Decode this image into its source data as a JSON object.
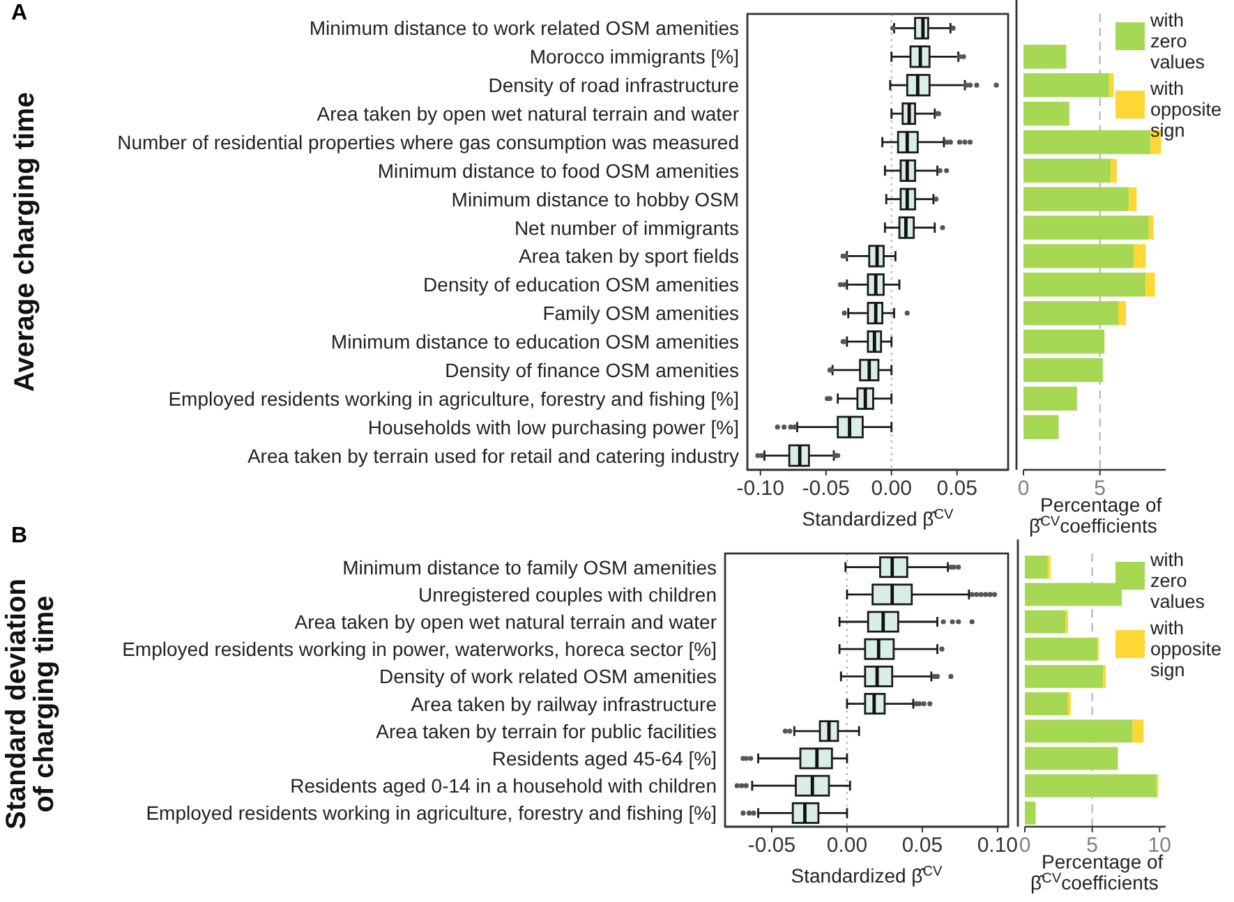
{
  "chart_data": [
    {
      "type": "box",
      "title": "A",
      "ylabel": "Average charging time",
      "xlabel": "Standardized β̂$^{CV}$",
      "orientation": "horizontal",
      "categories": [
        "Minimum distance to work related OSM amenities",
        "Morocco immigrants [%]",
        "Density of road infrastructure",
        "Area taken by open wet natural terrain and water",
        "Number of residential properties where gas consumption was measured",
        "Minimum distance to food OSM amenities",
        "Minimum distance to hobby OSM",
        "Net number of immigrants",
        "Area taken by sport fields",
        "Density of education OSM amenities",
        "Family OSM amenities",
        "Minimum distance to education OSM amenities",
        "Density of finance OSM amenities",
        "Employed residents working in agriculture, forestry and fishing [%]",
        "Households with low purchasing power [%]",
        "Area taken by terrain used for retail and catering industry"
      ],
      "xlim": [
        -0.11,
        0.089
      ],
      "xticks": [
        {
          "value": -0.1,
          "label": "-0.10"
        },
        {
          "value": -0.05,
          "label": "-0.05"
        },
        {
          "value": 0,
          "label": "0.00"
        },
        {
          "value": 0.05,
          "label": "0.05"
        }
      ],
      "ref_lines": [
        {
          "axis": "x",
          "value": 0,
          "color": "#bbbbbb",
          "line_style": "dotted"
        }
      ],
      "series": [
        {
          "color": "#d8eee6",
          "boxes": [
            {
              "low": 0.002,
              "q1": 0.018,
              "median": 0.024,
              "q3": 0.028,
              "high": 0.045,
              "outliers": [
                0.001,
                0.047
              ]
            },
            {
              "low": 0,
              "q1": 0.0145,
              "median": 0.022,
              "q3": 0.029,
              "high": 0.051,
              "outliers": [
                0.052,
                0.055
              ]
            },
            {
              "low": -0.001,
              "q1": 0.012,
              "median": 0.02,
              "q3": 0.029,
              "high": 0.056,
              "outliers": [
                0.057,
                0.06,
                0.065,
                0.08
              ]
            },
            {
              "low": 0,
              "q1": 0.0085,
              "median": 0.0135,
              "q3": 0.018,
              "high": 0.033,
              "outliers": [
                0.035,
                0.036
              ]
            },
            {
              "low": -0.007,
              "q1": 0.005,
              "median": 0.012,
              "q3": 0.02,
              "high": 0.04,
              "outliers": [
                0.042,
                0.045,
                0.052,
                0.056,
                0.06
              ]
            },
            {
              "low": -0.005,
              "q1": 0.007,
              "median": 0.012,
              "q3": 0.018,
              "high": 0.035,
              "outliers": [
                0.037,
                0.042
              ]
            },
            {
              "low": -0.004,
              "q1": 0.007,
              "median": 0.012,
              "q3": 0.018,
              "high": 0.032,
              "outliers": [
                0.034
              ]
            },
            {
              "low": -0.005,
              "q1": 0.006,
              "median": 0.011,
              "q3": 0.017,
              "high": 0.033,
              "outliers": [
                0.039
              ]
            },
            {
              "low": -0.034,
              "q1": -0.017,
              "median": -0.011,
              "q3": -0.006,
              "high": 0.003,
              "outliers": [
                -0.037,
                -0.035
              ]
            },
            {
              "low": -0.034,
              "q1": -0.018,
              "median": -0.012,
              "q3": -0.006,
              "high": 0.006,
              "outliers": [
                -0.039,
                -0.036
              ]
            },
            {
              "low": -0.033,
              "q1": -0.018,
              "median": -0.012,
              "q3": -0.007,
              "high": 0.002,
              "outliers": [
                -0.036,
                0.012
              ]
            },
            {
              "low": -0.034,
              "q1": -0.018,
              "median": -0.013,
              "q3": -0.008,
              "high": 0,
              "outliers": [
                -0.037,
                -0.036
              ]
            },
            {
              "low": -0.045,
              "q1": -0.024,
              "median": -0.017,
              "q3": -0.01,
              "high": 0,
              "outliers": [
                -0.047,
                -0.046
              ]
            },
            {
              "low": -0.041,
              "q1": -0.026,
              "median": -0.02,
              "q3": -0.014,
              "high": 0,
              "outliers": [
                -0.049,
                -0.047
              ]
            },
            {
              "low": -0.072,
              "q1": -0.041,
              "median": -0.032,
              "q3": -0.022,
              "high": 0,
              "outliers": [
                -0.087,
                -0.082,
                -0.077,
                -0.074
              ]
            },
            {
              "low": -0.097,
              "q1": -0.078,
              "median": -0.07,
              "q3": -0.063,
              "high": -0.044,
              "outliers": [
                -0.102,
                -0.099,
                -0.043,
                -0.041
              ]
            }
          ]
        }
      ]
    },
    {
      "type": "bar",
      "orientation": "horizontal",
      "stacked": true,
      "tick_labels": "x",
      "legend": "top right",
      "xlabel": "Percentage of β̂$^{CV}$coefficients",
      "categories": [
        null,
        null,
        null,
        null,
        null,
        null,
        null,
        null,
        null,
        null,
        null,
        null,
        null,
        null,
        null,
        null
      ],
      "xlim": [
        0,
        9.3
      ],
      "xticks": [
        0,
        5
      ],
      "ref_lines": [
        {
          "axis": "x",
          "value": 5,
          "color": "#bbbbbb",
          "line_style": "dashed"
        }
      ],
      "series": [
        {
          "name": "with zero values",
          "color": "#a6d854",
          "values": [
            null,
            2.8,
            5.6,
            3.0,
            8.3,
            5.7,
            6.9,
            8.2,
            7.2,
            8.0,
            6.2,
            5.3,
            5.2,
            3.5,
            2.3,
            null
          ]
        },
        {
          "name": "with opposite sign",
          "color": "#fdd835",
          "values": [
            null,
            null,
            0.3,
            null,
            0.7,
            0.4,
            0.5,
            0.3,
            0.8,
            0.6,
            0.5,
            null,
            null,
            null,
            null,
            null
          ]
        }
      ]
    },
    {
      "type": "box",
      "title": "B",
      "ylabel": "Standard deviation of charging time",
      "xlabel": "Standardized β̂$^{CV}$",
      "orientation": "horizontal",
      "categories": [
        "Minimum distance to family OSM amenities",
        "Unregistered couples with children",
        "Area taken by open wet natural terrain and water",
        "Employed residents working in power, waterworks, horeca sector [%]",
        "Density of work related OSM amenities",
        "Area taken by railway infrastructure",
        "Area taken by terrain for public facilities",
        "Residents aged 45-64 [%]",
        "Residents aged 0-14 in a household with children",
        "Employed residents working in agriculture, forestry and fishing [%]"
      ],
      "xlim": [
        -0.081,
        0.107
      ],
      "xticks": [
        {
          "value": -0.05,
          "label": "-0.05"
        },
        {
          "value": 0,
          "label": "0.00"
        },
        {
          "value": 0.05,
          "label": "0.05"
        },
        {
          "value": 0.1,
          "label": "0.10"
        }
      ],
      "ref_lines": [
        {
          "axis": "x",
          "value": 0,
          "color": "#bbbbbb",
          "line_style": "dotted"
        }
      ],
      "series": [
        {
          "color": "#d8eee6",
          "boxes": [
            {
              "low": -0.001,
              "q1": 0.022,
              "median": 0.03,
              "q3": 0.04,
              "high": 0.067,
              "outliers": [
                0.069,
                0.071,
                0.074
              ]
            },
            {
              "low": 0,
              "q1": 0.017,
              "median": 0.03,
              "q3": 0.043,
              "high": 0.081,
              "outliers": [
                0.083,
                0.086,
                0.089,
                0.092,
                0.095,
                0.098
              ]
            },
            {
              "low": -0.005,
              "q1": 0.014,
              "median": 0.024,
              "q3": 0.034,
              "high": 0.06,
              "outliers": [
                0.064,
                0.07,
                0.074,
                0.083
              ]
            },
            {
              "low": -0.005,
              "q1": 0.012,
              "median": 0.021,
              "q3": 0.031,
              "high": 0.06,
              "outliers": [
                0.063
              ]
            },
            {
              "low": -0.004,
              "q1": 0.012,
              "median": 0.02,
              "q3": 0.03,
              "high": 0.056,
              "outliers": [
                0.058,
                0.06,
                0.069
              ]
            },
            {
              "low": 0,
              "q1": 0.012,
              "median": 0.018,
              "q3": 0.025,
              "high": 0.044,
              "outliers": [
                0.046,
                0.048,
                0.051,
                0.055
              ]
            },
            {
              "low": -0.035,
              "q1": -0.018,
              "median": -0.012,
              "q3": -0.006,
              "high": 0.008,
              "outliers": [
                -0.041,
                -0.038
              ]
            },
            {
              "low": -0.059,
              "q1": -0.031,
              "median": -0.02,
              "q3": -0.01,
              "high": 0,
              "outliers": [
                -0.069,
                -0.067,
                -0.064
              ]
            },
            {
              "low": -0.063,
              "q1": -0.034,
              "median": -0.023,
              "q3": -0.012,
              "high": 0.002,
              "outliers": [
                -0.073,
                -0.07,
                -0.067
              ]
            },
            {
              "low": -0.059,
              "q1": -0.036,
              "median": -0.028,
              "q3": -0.019,
              "high": 0,
              "outliers": [
                -0.069,
                -0.065,
                -0.062
              ]
            }
          ]
        }
      ]
    },
    {
      "type": "bar",
      "orientation": "horizontal",
      "stacked": true,
      "tick_labels": "x",
      "legend": "top right",
      "xlabel": "Percentage of β̂$^{CV}$coefficients",
      "categories": [
        null,
        null,
        null,
        null,
        null,
        null,
        null,
        null,
        null,
        null
      ],
      "xlim": [
        0,
        10.45
      ],
      "xticks": [
        0,
        5,
        10
      ],
      "ref_lines": [
        {
          "axis": "x",
          "value": 5,
          "color": "#bbbbbb",
          "line_style": "dashed"
        }
      ],
      "series": [
        {
          "name": "with zero values",
          "color": "#a6d854",
          "values": [
            1.7,
            7.2,
            3.0,
            5.4,
            5.8,
            3.2,
            8.0,
            6.9,
            9.8,
            0.8
          ]
        },
        {
          "name": "with opposite sign",
          "color": "#fdd835",
          "values": [
            0.2,
            null,
            0.2,
            0.1,
            0.2,
            0.2,
            0.8,
            null,
            0.1,
            null
          ]
        }
      ]
    }
  ]
}
